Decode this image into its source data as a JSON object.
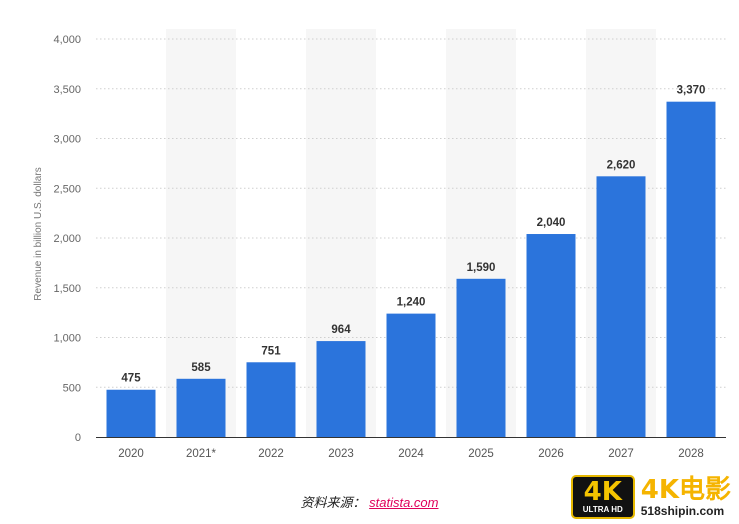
{
  "chart_data": {
    "type": "bar",
    "categories": [
      "2020",
      "2021*",
      "2022",
      "2023",
      "2024",
      "2025",
      "2026",
      "2027",
      "2028"
    ],
    "values": [
      475,
      585,
      751,
      964,
      1240,
      1590,
      2040,
      2620,
      3370
    ],
    "value_labels": [
      "475",
      "585",
      "751",
      "964",
      "1,240",
      "1,590",
      "2,040",
      "2,620",
      "3,370"
    ],
    "ylabel": "Revenue in billion U.S. dollars",
    "ylim": [
      0,
      4000
    ],
    "yticks": [
      0,
      500,
      1000,
      1500,
      2000,
      2500,
      3000,
      3500,
      4000
    ],
    "ytick_labels": [
      "0",
      "500",
      "1,000",
      "1,500",
      "2,000",
      "2,500",
      "3,000",
      "3,500",
      "4,000"
    ],
    "grid": true,
    "bar_color": "#2b74dc"
  },
  "source": {
    "label": "资料来源：",
    "link": "statista.com"
  },
  "watermark": {
    "badge_big": "4K",
    "badge_small": "ULTRA HD",
    "title": "4K电影",
    "url": "518shipin.com"
  }
}
